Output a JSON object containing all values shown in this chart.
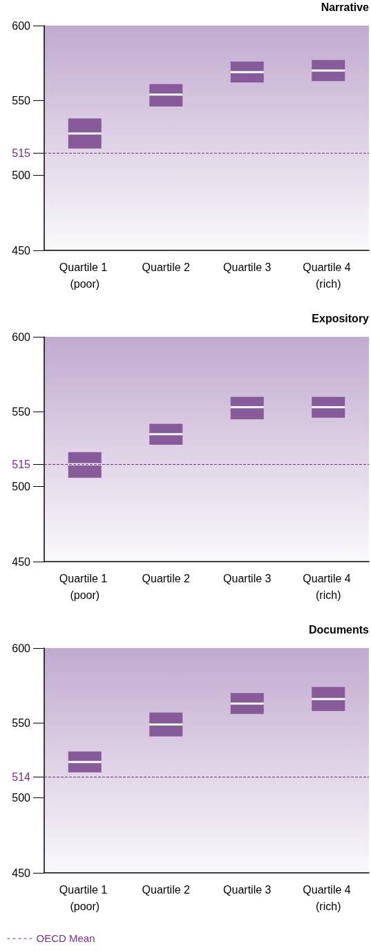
{
  "chart_data": [
    {
      "type": "box",
      "title": "Narrative",
      "categories": [
        "Quartile 1 (poor)",
        "Quartile 2",
        "Quartile 3",
        "Quartile 4 (rich)"
      ],
      "color": "#875a99",
      "boxes": [
        {
          "low": 518,
          "q1": 518,
          "median": 528,
          "q3": 538,
          "high": 538
        },
        {
          "low": 546,
          "q1": 546,
          "median": 554,
          "q3": 561,
          "high": 561
        },
        {
          "low": 562,
          "q1": 562,
          "median": 569,
          "q3": 576,
          "high": 576
        },
        {
          "low": 563,
          "q1": 563,
          "median": 570,
          "q3": 577,
          "high": 577
        }
      ],
      "ylim": [
        450,
        600
      ],
      "yticks": [
        450,
        500,
        515,
        550,
        600
      ],
      "grid": false,
      "legend": false,
      "ref_lines": [
        {
          "axis": "y",
          "value": 515,
          "color": "#7b2d8e",
          "line_style": "dashed"
        }
      ]
    },
    {
      "type": "box",
      "title": "Expository",
      "categories": [
        "Quartile 1 (poor)",
        "Quartile 2",
        "Quartile 3",
        "Quartile 4 (rich)"
      ],
      "color": "#875a99",
      "boxes": [
        {
          "low": 506,
          "q1": 506,
          "median": 515,
          "q3": 523,
          "high": 523
        },
        {
          "low": 528,
          "q1": 528,
          "median": 535,
          "q3": 542,
          "high": 542
        },
        {
          "low": 545,
          "q1": 545,
          "median": 553,
          "q3": 560,
          "high": 560
        },
        {
          "low": 546,
          "q1": 546,
          "median": 553,
          "q3": 560,
          "high": 560
        }
      ],
      "ylim": [
        450,
        600
      ],
      "yticks": [
        450,
        500,
        515,
        550,
        600
      ],
      "grid": false,
      "legend": false,
      "ref_lines": [
        {
          "axis": "y",
          "value": 515,
          "color": "#7b2d8e",
          "line_style": "dashed"
        }
      ]
    },
    {
      "type": "box",
      "title": "Documents",
      "categories": [
        "Quartile 1 (poor)",
        "Quartile 2",
        "Quartile 3",
        "Quartile 4 (rich)"
      ],
      "color": "#875a99",
      "boxes": [
        {
          "low": 517,
          "q1": 517,
          "median": 524,
          "q3": 531,
          "high": 531
        },
        {
          "low": 541,
          "q1": 541,
          "median": 549,
          "q3": 557,
          "high": 557
        },
        {
          "low": 556,
          "q1": 556,
          "median": 563,
          "q3": 570,
          "high": 570
        },
        {
          "low": 558,
          "q1": 558,
          "median": 566,
          "q3": 574,
          "high": 574
        }
      ],
      "ylim": [
        450,
        600
      ],
      "yticks": [
        450,
        500,
        514,
        550,
        600
      ],
      "grid": false,
      "legend": "bottom left",
      "ref_lines": [
        {
          "axis": "y",
          "value": 514,
          "label": "OECD Mean",
          "color": "#7b2d8e",
          "line_style": "dashed"
        }
      ]
    }
  ]
}
